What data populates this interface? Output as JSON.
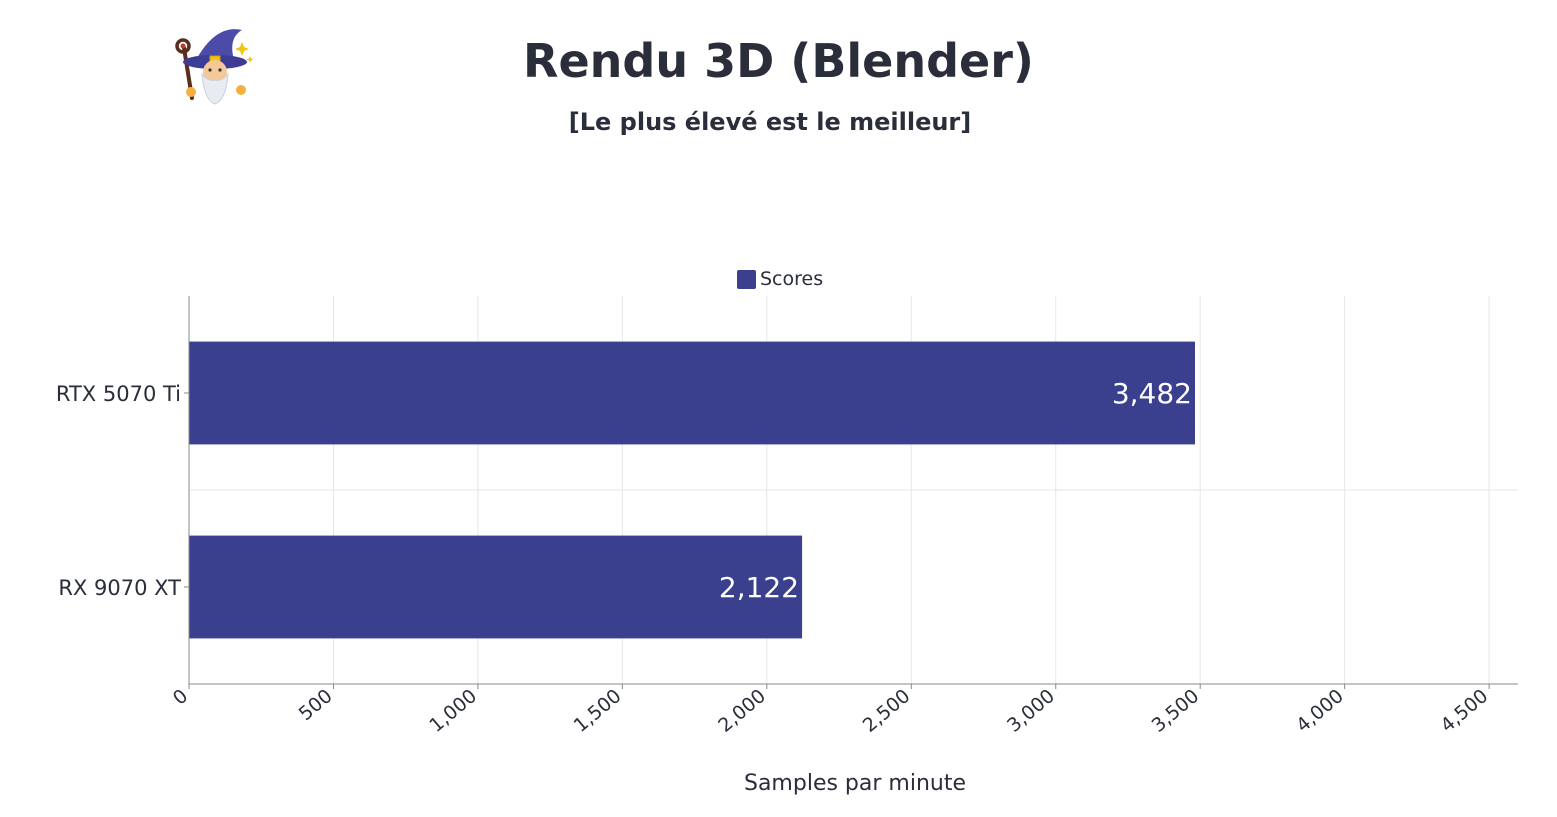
{
  "header": {
    "title": "Rendu 3D (Blender)",
    "subtitle": "[Le plus élevé est le meilleur]"
  },
  "logo": {
    "icon": "wizard-icon"
  },
  "colors": {
    "bar": "#3a408e",
    "text": "#2a2d3a",
    "grid": "#e6e6e6",
    "axis": "#888888",
    "value_label": "#ffffff"
  },
  "chart_data": {
    "type": "bar",
    "orientation": "horizontal",
    "categories": [
      "RTX 5070 Ti",
      "RX 9070 XT"
    ],
    "series": [
      {
        "name": "Scores",
        "values": [
          3482,
          2122
        ]
      }
    ],
    "value_labels": [
      "3,482",
      "2,122"
    ],
    "xlabel": "Samples par minute",
    "ylabel": "",
    "xlim": [
      0,
      4600
    ],
    "xticks": [
      0,
      500,
      1000,
      1500,
      2000,
      2500,
      3000,
      3500,
      4000,
      4500
    ],
    "xtick_labels": [
      "0",
      "500",
      "1,000",
      "1,500",
      "2,000",
      "2,500",
      "3,000",
      "3,500",
      "4,000",
      "4,500"
    ],
    "legend": {
      "position": "top-center",
      "entries": [
        "Scores"
      ]
    },
    "grid": true
  }
}
